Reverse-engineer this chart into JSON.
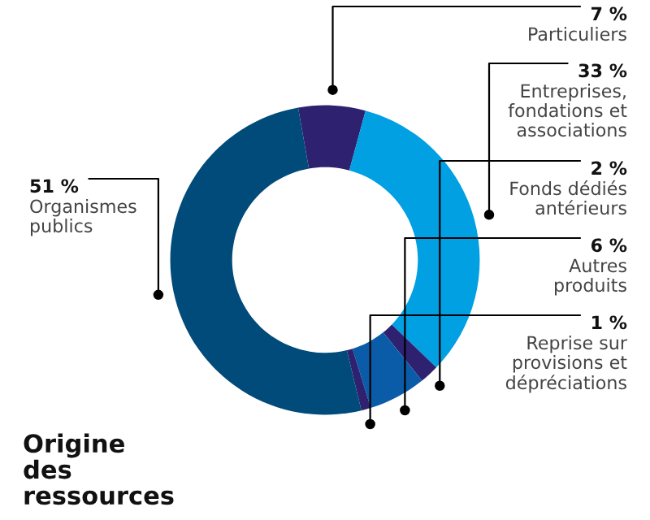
{
  "chart_data": {
    "type": "donut",
    "title": "Origine des ressources",
    "categories": [
      "Particuliers",
      "Entreprises, fondations et associations",
      "Fonds dédiés antérieurs",
      "Autres produits",
      "Reprise sur provisions et dépréciations",
      "Organismes publics"
    ],
    "values": [
      7,
      33,
      2,
      6,
      1,
      51
    ],
    "value_labels": [
      "7 %",
      "33 %",
      "2 %",
      "6 %",
      "1 %",
      "51 %"
    ],
    "colors": [
      "#2e2270",
      "#00a0e3",
      "#2e2270",
      "#0a5ca8",
      "#2e2270",
      "#004b7a"
    ],
    "legend": false
  }
}
